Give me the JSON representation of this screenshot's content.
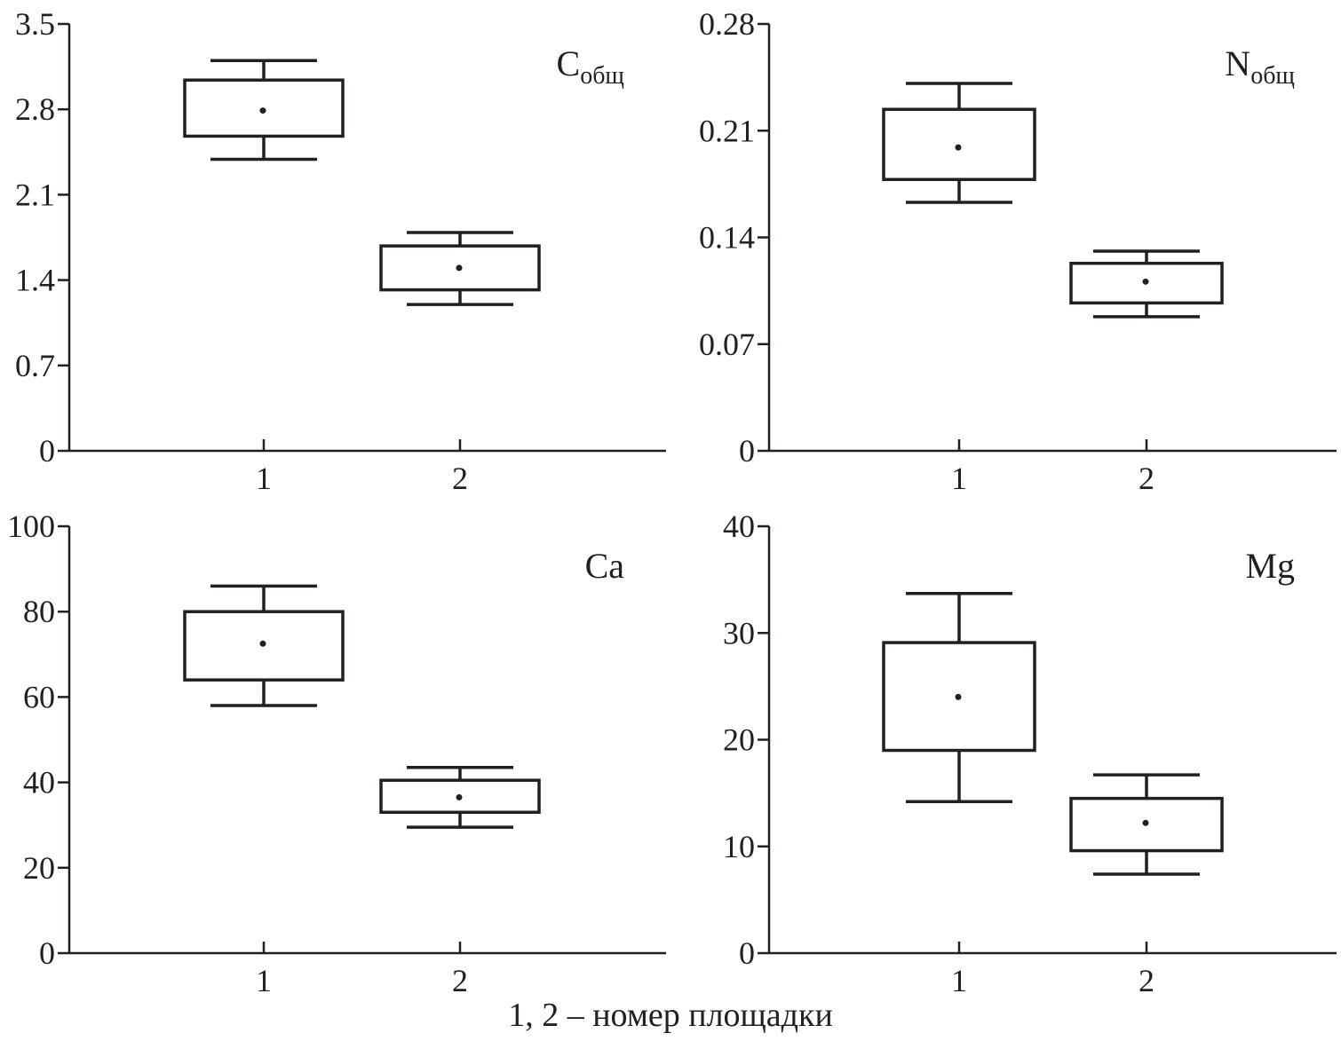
{
  "x_caption": "1, 2 – номер площадки",
  "colors": {
    "ink": "#231f20",
    "background": "#ffffff"
  },
  "chart_data": [
    {
      "type": "box",
      "label": "C",
      "label_sub": "общ",
      "categories": [
        "1",
        "2"
      ],
      "yticks": [
        "0",
        "0.7",
        "1.4",
        "2.1",
        "2.8",
        "3.5"
      ],
      "ylim": [
        0,
        3.5
      ],
      "boxes": [
        {
          "category": "1",
          "whisker_low": 2.39,
          "q1": 2.58,
          "mean": 2.79,
          "q3": 3.04,
          "whisker_high": 3.2
        },
        {
          "category": "2",
          "whisker_low": 1.2,
          "q1": 1.32,
          "mean": 1.5,
          "q3": 1.68,
          "whisker_high": 1.79
        }
      ]
    },
    {
      "type": "box",
      "label": "N",
      "label_sub": "общ",
      "categories": [
        "1",
        "2"
      ],
      "yticks": [
        "0",
        "0.07",
        "0.14",
        "0.21",
        "0.28"
      ],
      "ylim": [
        0,
        0.28
      ],
      "boxes": [
        {
          "category": "1",
          "whisker_low": 0.163,
          "q1": 0.178,
          "mean": 0.199,
          "q3": 0.224,
          "whisker_high": 0.241
        },
        {
          "category": "2",
          "whisker_low": 0.088,
          "q1": 0.097,
          "mean": 0.111,
          "q3": 0.123,
          "whisker_high": 0.131
        }
      ]
    },
    {
      "type": "box",
      "label": "Ca",
      "label_sub": "",
      "categories": [
        "1",
        "2"
      ],
      "yticks": [
        "0",
        "20",
        "40",
        "60",
        "80",
        "100"
      ],
      "ylim": [
        0,
        100
      ],
      "boxes": [
        {
          "category": "1",
          "whisker_low": 58,
          "q1": 64,
          "mean": 72.5,
          "q3": 80,
          "whisker_high": 86
        },
        {
          "category": "2",
          "whisker_low": 29.5,
          "q1": 33,
          "mean": 36.5,
          "q3": 40.5,
          "whisker_high": 43.5
        }
      ]
    },
    {
      "type": "box",
      "label": "Mg",
      "label_sub": "",
      "categories": [
        "1",
        "2"
      ],
      "yticks": [
        "0",
        "10",
        "20",
        "30",
        "40"
      ],
      "ylim": [
        0,
        40
      ],
      "boxes": [
        {
          "category": "1",
          "whisker_low": 14.2,
          "q1": 19,
          "mean": 24,
          "q3": 29.1,
          "whisker_high": 33.7
        },
        {
          "category": "2",
          "whisker_low": 7.4,
          "q1": 9.6,
          "mean": 12.2,
          "q3": 14.5,
          "whisker_high": 16.7
        }
      ]
    }
  ]
}
